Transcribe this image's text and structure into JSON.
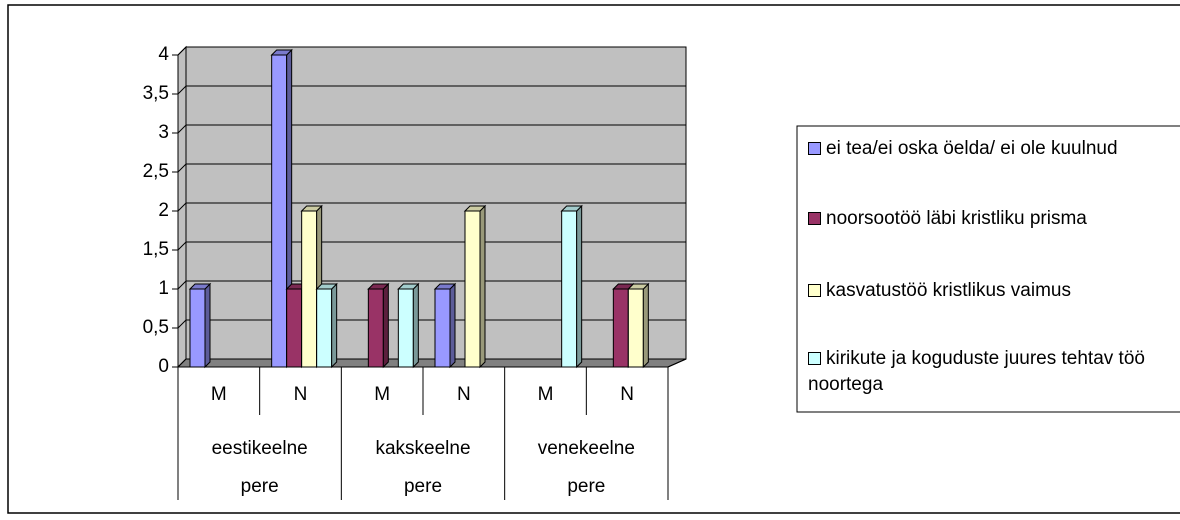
{
  "chart_data": {
    "type": "bar3d",
    "categories": [
      "M",
      "N",
      "M",
      "N",
      "M",
      "N"
    ],
    "groups": [
      "eestikeelne pere",
      "kakskeelne pere",
      "venekeelne pere"
    ],
    "series": [
      {
        "name": "ei tea/ei oska öelda/ ei ole kuulnud",
        "color": "#9999ff",
        "values": [
          1,
          4,
          0,
          1,
          0,
          0
        ]
      },
      {
        "name": "noorsootöö läbi kristliku prisma",
        "color": "#993366",
        "values": [
          0,
          1,
          1,
          0,
          0,
          1
        ]
      },
      {
        "name": "kasvatustöö kristlikus vaimus",
        "color": "#ffffcc",
        "values": [
          0,
          2,
          0,
          2,
          0,
          1
        ]
      },
      {
        "name": "kirikute ja koguduste juures tehtav töö noortega",
        "color": "#ccffff",
        "values": [
          0,
          1,
          1,
          0,
          2,
          0
        ]
      }
    ],
    "ylim": [
      0,
      4
    ],
    "yticks": [
      0,
      {
        "value": 0.5,
        "label": "0,5"
      },
      1,
      {
        "value": 1.5,
        "label": "1,5"
      },
      2,
      {
        "value": 2.5,
        "label": "2,5"
      },
      3,
      {
        "value": 3.5,
        "label": "3,5"
      },
      4
    ],
    "grid": true,
    "legend": "right"
  }
}
